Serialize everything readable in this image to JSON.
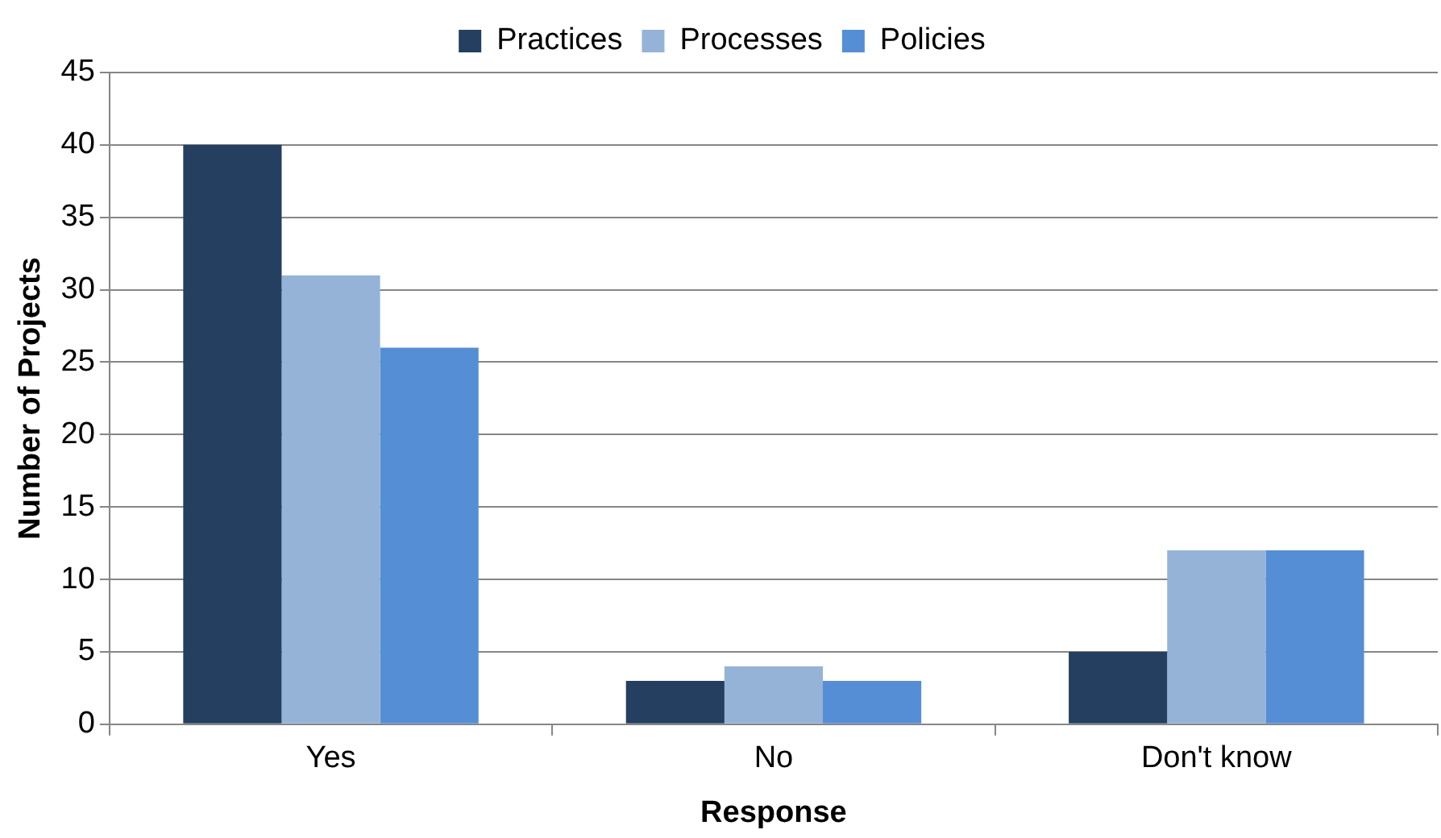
{
  "chart_data": {
    "type": "bar",
    "xlabel": "Response",
    "ylabel": "Number of Projects",
    "categories": [
      "Yes",
      "No",
      "Don't know"
    ],
    "series": [
      {
        "name": "Practices",
        "color": "#243f60",
        "values": [
          40,
          3,
          5
        ]
      },
      {
        "name": "Processes",
        "color": "#95b3d7",
        "values": [
          31,
          4,
          12
        ]
      },
      {
        "name": "Policies",
        "color": "#558ed5",
        "values": [
          26,
          3,
          12
        ]
      }
    ],
    "ylim": [
      0,
      45
    ],
    "yticks": [
      0,
      5,
      10,
      15,
      20,
      25,
      30,
      35,
      40,
      45
    ],
    "grid": "y",
    "legend": "top"
  }
}
